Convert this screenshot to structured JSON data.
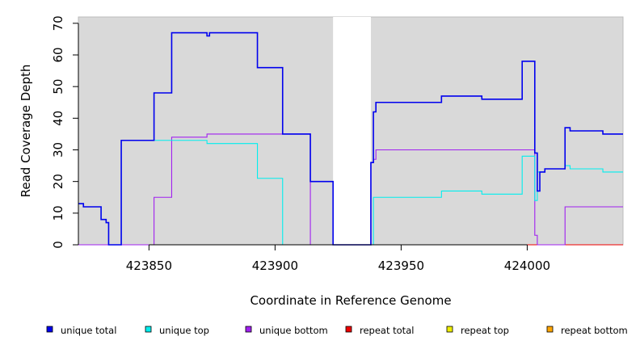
{
  "chart_data": {
    "type": "line",
    "title": "",
    "xlabel": "Coordinate in Reference Genome",
    "ylabel": "Read Coverage Depth",
    "xlim": [
      423822,
      424038
    ],
    "ylim": [
      0,
      72
    ],
    "xticks": [
      423850,
      423900,
      423950,
      424000
    ],
    "yticks": [
      0,
      10,
      20,
      30,
      40,
      50,
      60,
      70
    ],
    "x_tick_labels": [
      "423850",
      "423900",
      "423950",
      "424000"
    ],
    "y_tick_labels": [
      "0",
      "10",
      "20",
      "30",
      "40",
      "50",
      "60",
      "70"
    ],
    "grid": false,
    "legend_position": "bottom",
    "background_color": "#d9d9d9",
    "gap_region": [
      423923,
      423938
    ],
    "series": [
      {
        "name": "unique total",
        "color": "#0000ee",
        "points": [
          [
            423822,
            13
          ],
          [
            423824,
            13
          ],
          [
            423824,
            12
          ],
          [
            423831,
            12
          ],
          [
            423831,
            8
          ],
          [
            423833,
            8
          ],
          [
            423833,
            7
          ],
          [
            423834,
            7
          ],
          [
            423834,
            0
          ],
          [
            423839,
            0
          ],
          [
            423839,
            33
          ],
          [
            423852,
            33
          ],
          [
            423852,
            48
          ],
          [
            423859,
            48
          ],
          [
            423859,
            67
          ],
          [
            423873,
            67
          ],
          [
            423873,
            66
          ],
          [
            423874,
            66
          ],
          [
            423874,
            67
          ],
          [
            423893,
            67
          ],
          [
            423893,
            56
          ],
          [
            423903,
            56
          ],
          [
            423903,
            35
          ],
          [
            423914,
            35
          ],
          [
            423914,
            20
          ],
          [
            423923,
            20
          ],
          [
            423923,
            0
          ],
          [
            423938,
            0
          ],
          [
            423938,
            26
          ],
          [
            423939,
            26
          ],
          [
            423939,
            42
          ],
          [
            423940,
            42
          ],
          [
            423940,
            45
          ],
          [
            423966,
            45
          ],
          [
            423966,
            47
          ],
          [
            423982,
            47
          ],
          [
            423982,
            46
          ],
          [
            423998,
            46
          ],
          [
            423998,
            58
          ],
          [
            424003,
            58
          ],
          [
            424003,
            29
          ],
          [
            424004,
            29
          ],
          [
            424004,
            17
          ],
          [
            424005,
            17
          ],
          [
            424005,
            23
          ],
          [
            424007,
            23
          ],
          [
            424007,
            24
          ],
          [
            424015,
            24
          ],
          [
            424015,
            37
          ],
          [
            424017,
            37
          ],
          [
            424017,
            36
          ],
          [
            424030,
            36
          ],
          [
            424030,
            35
          ],
          [
            424038,
            35
          ]
        ]
      },
      {
        "name": "unique top",
        "color": "#00eeee",
        "points": [
          [
            423822,
            13
          ],
          [
            423824,
            13
          ],
          [
            423824,
            12
          ],
          [
            423831,
            12
          ],
          [
            423831,
            8
          ],
          [
            423833,
            8
          ],
          [
            423833,
            7
          ],
          [
            423834,
            7
          ],
          [
            423834,
            0
          ],
          [
            423839,
            0
          ],
          [
            423839,
            33
          ],
          [
            423873,
            33
          ],
          [
            423873,
            32
          ],
          [
            423893,
            32
          ],
          [
            423893,
            21
          ],
          [
            423903,
            21
          ],
          [
            423903,
            0
          ],
          [
            423939,
            0
          ],
          [
            423939,
            15
          ],
          [
            423966,
            15
          ],
          [
            423966,
            17
          ],
          [
            423982,
            17
          ],
          [
            423982,
            16
          ],
          [
            423998,
            16
          ],
          [
            423998,
            28
          ],
          [
            424003,
            28
          ],
          [
            424003,
            14
          ],
          [
            424004,
            14
          ],
          [
            424004,
            23
          ],
          [
            424007,
            23
          ],
          [
            424007,
            24
          ],
          [
            424015,
            24
          ],
          [
            424015,
            25
          ],
          [
            424017,
            25
          ],
          [
            424017,
            24
          ],
          [
            424030,
            24
          ],
          [
            424030,
            23
          ],
          [
            424038,
            23
          ]
        ]
      },
      {
        "name": "unique bottom",
        "color": "#a020f0",
        "points": [
          [
            423822,
            0
          ],
          [
            423852,
            0
          ],
          [
            423852,
            15
          ],
          [
            423859,
            15
          ],
          [
            423859,
            34
          ],
          [
            423873,
            34
          ],
          [
            423873,
            35
          ],
          [
            423914,
            35
          ],
          [
            423914,
            0
          ],
          [
            423938,
            0
          ],
          [
            423938,
            26
          ],
          [
            423939,
            26
          ],
          [
            423939,
            27
          ],
          [
            423940,
            27
          ],
          [
            423940,
            30
          ],
          [
            424003,
            30
          ],
          [
            424003,
            3
          ],
          [
            424004,
            3
          ],
          [
            424004,
            0
          ],
          [
            424015,
            0
          ],
          [
            424015,
            12
          ],
          [
            424038,
            12
          ]
        ]
      },
      {
        "name": "repeat total",
        "color": "#ee0000",
        "points": [
          [
            423822,
            0
          ],
          [
            424038,
            0
          ]
        ]
      },
      {
        "name": "repeat top",
        "color": "#eeee00",
        "points": [
          [
            423822,
            0
          ],
          [
            424038,
            0
          ]
        ]
      },
      {
        "name": "repeat bottom",
        "color": "#ffa500",
        "points": [
          [
            423822,
            0
          ],
          [
            424038,
            0
          ]
        ]
      }
    ]
  }
}
